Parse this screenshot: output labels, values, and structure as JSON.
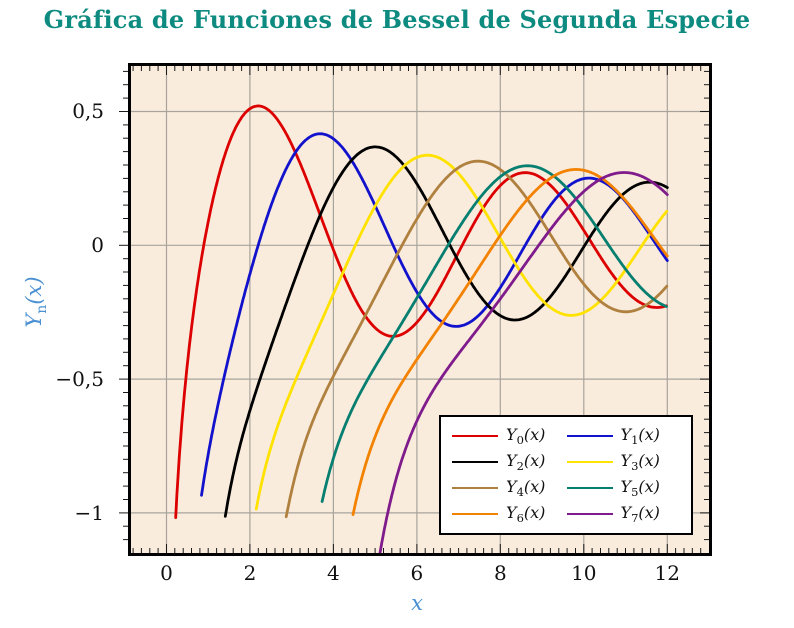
{
  "title": {
    "text": "Gráfica de Funciones de Bessel de Segunda Especie",
    "color": "#0e8b80"
  },
  "plot": {
    "background": "#f9ecdd",
    "grid_color": "#a8a39b",
    "frame_color": "#000000",
    "tick_color": "#1a1a1a"
  },
  "axes": {
    "label_color": "#4a90d2",
    "x": {
      "label": "x",
      "min": -0.85,
      "max": 13.0,
      "minor_step": 0.2,
      "ticks": [
        {
          "v": 0,
          "label": "0"
        },
        {
          "v": 2,
          "label": "2"
        },
        {
          "v": 4,
          "label": "4"
        },
        {
          "v": 6,
          "label": "6"
        },
        {
          "v": 8,
          "label": "8"
        },
        {
          "v": 10,
          "label": "10"
        },
        {
          "v": 12,
          "label": "12"
        }
      ]
    },
    "y": {
      "label_base": "Y",
      "label_sub": "n",
      "label_suffix": "(x)",
      "min": -1.15,
      "max": 0.67,
      "minor_step": 0.05,
      "ticks": [
        {
          "v": 0.5,
          "label": "0,5"
        },
        {
          "v": 0,
          "label": "0"
        },
        {
          "v": -0.5,
          "label": "−0,5"
        },
        {
          "v": -1,
          "label": "−1"
        }
      ]
    }
  },
  "chart_data": {
    "type": "line",
    "title": "Gráfica de Funciones de Bessel de Segunda Especie",
    "xlabel": "x",
    "ylabel": "Y_n(x)",
    "xlim": [
      -0.85,
      13.0
    ],
    "ylim": [
      -1.15,
      0.67
    ],
    "grid": true,
    "x_gridlines": [
      0,
      2,
      4,
      6,
      8,
      10,
      12
    ],
    "y_gridlines": [
      0.5,
      0,
      -0.5,
      -1
    ],
    "legend_position": "lower right",
    "function_family": "Bessel function of the second kind Y_n(x)",
    "series": [
      {
        "label": "Y_0(x)",
        "label_parts": {
          "base": "Y",
          "sub": "0",
          "suffix": "(x)"
        },
        "color": "#dc0000",
        "bessel_order": 0,
        "x_start": 0.22,
        "x_end": 12,
        "key_points": [
          [
            0.22,
            -1.03
          ],
          [
            0.89,
            0
          ],
          [
            2.2,
            0.52
          ],
          [
            3.96,
            0
          ],
          [
            5.43,
            -0.34
          ],
          [
            7.09,
            0
          ],
          [
            8.6,
            0.25
          ],
          [
            10.22,
            0
          ],
          [
            11.75,
            -0.21
          ],
          [
            12,
            -0.23
          ]
        ]
      },
      {
        "label": "Y_1(x)",
        "label_parts": {
          "base": "Y",
          "sub": "1",
          "suffix": "(x)"
        },
        "color": "#1212cc",
        "bessel_order": 1,
        "x_start": 0.84,
        "x_end": 12,
        "key_points": [
          [
            0.84,
            -1.0
          ],
          [
            2.2,
            0
          ],
          [
            3.68,
            0.42
          ],
          [
            5.43,
            0
          ],
          [
            6.94,
            -0.3
          ],
          [
            8.6,
            0
          ],
          [
            10.1,
            0.25
          ],
          [
            11.75,
            0
          ],
          [
            12,
            -0.06
          ]
        ]
      },
      {
        "label": "Y_2(x)",
        "label_parts": {
          "base": "Y",
          "sub": "2",
          "suffix": "(x)"
        },
        "color": "#000000",
        "bessel_order": 2,
        "x_start": 1.41,
        "x_end": 12,
        "key_points": [
          [
            1.41,
            -1.05
          ],
          [
            3.38,
            0
          ],
          [
            5.0,
            0.37
          ],
          [
            6.79,
            0
          ],
          [
            8.35,
            -0.28
          ],
          [
            10.02,
            0
          ],
          [
            11.56,
            0.23
          ],
          [
            12,
            0.22
          ]
        ]
      },
      {
        "label": "Y_3(x)",
        "label_parts": {
          "base": "Y",
          "sub": "3",
          "suffix": "(x)"
        },
        "color": "#ffe200",
        "bessel_order": 3,
        "x_start": 2.15,
        "x_end": 12,
        "key_points": [
          [
            2.15,
            -1.04
          ],
          [
            4.53,
            0
          ],
          [
            6.3,
            0.33
          ],
          [
            8.1,
            0
          ],
          [
            9.68,
            -0.26
          ],
          [
            11.4,
            0
          ],
          [
            12,
            0.12
          ]
        ]
      },
      {
        "label": "Y_4(x)",
        "label_parts": {
          "base": "Y",
          "sub": "4",
          "suffix": "(x)"
        },
        "color": "#b0803f",
        "bessel_order": 4,
        "x_start": 2.87,
        "x_end": 12,
        "key_points": [
          [
            2.87,
            -1.06
          ],
          [
            5.65,
            0
          ],
          [
            7.5,
            0.3
          ],
          [
            9.36,
            0
          ],
          [
            10.95,
            -0.25
          ],
          [
            12,
            -0.11
          ]
        ]
      },
      {
        "label": "Y_5(x)",
        "label_parts": {
          "base": "Y",
          "sub": "5",
          "suffix": "(x)"
        },
        "color": "#067f70",
        "bessel_order": 5,
        "x_start": 3.73,
        "x_end": 12,
        "key_points": [
          [
            3.73,
            -0.95
          ],
          [
            6.75,
            0
          ],
          [
            8.65,
            0.3
          ],
          [
            10.6,
            0
          ],
          [
            12,
            -0.21
          ]
        ]
      },
      {
        "label": "Y_6(x)",
        "label_parts": {
          "base": "Y",
          "sub": "6",
          "suffix": "(x)"
        },
        "color": "#f28200",
        "bessel_order": 6,
        "x_start": 4.47,
        "x_end": 12,
        "key_points": [
          [
            4.47,
            -1.05
          ],
          [
            7.84,
            0
          ],
          [
            9.85,
            0.28
          ],
          [
            11.73,
            0
          ],
          [
            12,
            -0.05
          ]
        ]
      },
      {
        "label": "Y_7(x)",
        "label_parts": {
          "base": "Y",
          "sub": "7",
          "suffix": "(x)"
        },
        "color": "#801b8c",
        "bessel_order": 7,
        "x_start": 5.04,
        "x_end": 12,
        "key_points": [
          [
            5.04,
            -0.98
          ],
          [
            8.92,
            0
          ],
          [
            11.0,
            0.27
          ],
          [
            12,
            0.2
          ]
        ]
      }
    ]
  }
}
